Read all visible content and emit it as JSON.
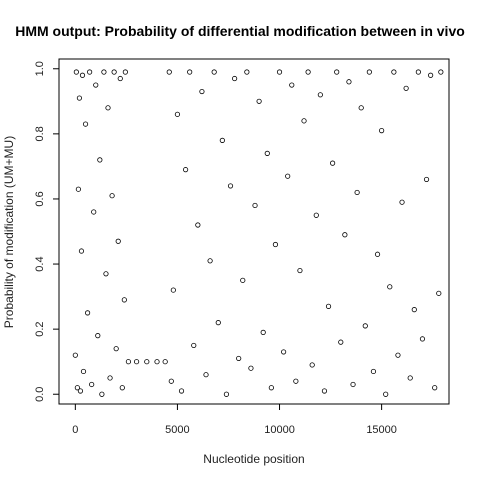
{
  "chart_data": {
    "type": "scatter",
    "title": "HMM output: Probability of differential modification between in vivo",
    "xlabel": "Nucleotide position",
    "ylabel": "Probability of modification (UM+MU)",
    "xlim": [
      -800,
      18300
    ],
    "ylim": [
      -0.03,
      1.03
    ],
    "x_ticks": [
      0,
      5000,
      10000,
      15000
    ],
    "x_tick_labels": [
      "0",
      "5000",
      "10000",
      "15000"
    ],
    "y_ticks": [
      0.0,
      0.2,
      0.4,
      0.6,
      0.8,
      1.0
    ],
    "y_tick_labels": [
      "0.0",
      "0.2",
      "0.4",
      "0.6",
      "0.8",
      "1.0"
    ],
    "grid": false,
    "marker": "open-circle",
    "sampled_points": [
      [
        0,
        0.12
      ],
      [
        50,
        0.99
      ],
      [
        100,
        0.02
      ],
      [
        150,
        0.63
      ],
      [
        200,
        0.91
      ],
      [
        250,
        0.01
      ],
      [
        300,
        0.44
      ],
      [
        350,
        0.98
      ],
      [
        400,
        0.07
      ],
      [
        500,
        0.83
      ],
      [
        600,
        0.25
      ],
      [
        700,
        0.99
      ],
      [
        800,
        0.03
      ],
      [
        900,
        0.56
      ],
      [
        1000,
        0.95
      ],
      [
        1100,
        0.18
      ],
      [
        1200,
        0.72
      ],
      [
        1300,
        0.0
      ],
      [
        1400,
        0.99
      ],
      [
        1500,
        0.37
      ],
      [
        1600,
        0.88
      ],
      [
        1700,
        0.05
      ],
      [
        1800,
        0.61
      ],
      [
        1900,
        0.99
      ],
      [
        2000,
        0.14
      ],
      [
        2100,
        0.47
      ],
      [
        2200,
        0.97
      ],
      [
        2300,
        0.02
      ],
      [
        2400,
        0.29
      ],
      [
        2450,
        0.99
      ],
      [
        2600,
        0.1
      ],
      [
        3000,
        0.1
      ],
      [
        3500,
        0.1
      ],
      [
        4000,
        0.1
      ],
      [
        4400,
        0.1
      ],
      [
        4600,
        0.99
      ],
      [
        4700,
        0.04
      ],
      [
        4800,
        0.32
      ],
      [
        5000,
        0.86
      ],
      [
        5200,
        0.01
      ],
      [
        5400,
        0.69
      ],
      [
        5600,
        0.99
      ],
      [
        5800,
        0.15
      ],
      [
        6000,
        0.52
      ],
      [
        6200,
        0.93
      ],
      [
        6400,
        0.06
      ],
      [
        6600,
        0.41
      ],
      [
        6800,
        0.99
      ],
      [
        7000,
        0.22
      ],
      [
        7200,
        0.78
      ],
      [
        7400,
        0.0
      ],
      [
        7600,
        0.64
      ],
      [
        7800,
        0.97
      ],
      [
        8000,
        0.11
      ],
      [
        8200,
        0.35
      ],
      [
        8400,
        0.99
      ],
      [
        8600,
        0.08
      ],
      [
        8800,
        0.58
      ],
      [
        9000,
        0.9
      ],
      [
        9200,
        0.19
      ],
      [
        9400,
        0.74
      ],
      [
        9600,
        0.02
      ],
      [
        9800,
        0.46
      ],
      [
        10000,
        0.99
      ],
      [
        10200,
        0.13
      ],
      [
        10400,
        0.67
      ],
      [
        10600,
        0.95
      ],
      [
        10800,
        0.04
      ],
      [
        11000,
        0.38
      ],
      [
        11200,
        0.84
      ],
      [
        11400,
        0.99
      ],
      [
        11600,
        0.09
      ],
      [
        11800,
        0.55
      ],
      [
        12000,
        0.92
      ],
      [
        12200,
        0.01
      ],
      [
        12400,
        0.27
      ],
      [
        12600,
        0.71
      ],
      [
        12800,
        0.99
      ],
      [
        13000,
        0.16
      ],
      [
        13200,
        0.49
      ],
      [
        13400,
        0.96
      ],
      [
        13600,
        0.03
      ],
      [
        13800,
        0.62
      ],
      [
        14000,
        0.88
      ],
      [
        14200,
        0.21
      ],
      [
        14400,
        0.99
      ],
      [
        14600,
        0.07
      ],
      [
        14800,
        0.43
      ],
      [
        15000,
        0.81
      ],
      [
        15200,
        0.0
      ],
      [
        15400,
        0.33
      ],
      [
        15600,
        0.99
      ],
      [
        15800,
        0.12
      ],
      [
        16000,
        0.59
      ],
      [
        16200,
        0.94
      ],
      [
        16400,
        0.05
      ],
      [
        16600,
        0.26
      ],
      [
        16800,
        0.99
      ],
      [
        17000,
        0.17
      ],
      [
        17200,
        0.66
      ],
      [
        17400,
        0.98
      ],
      [
        17600,
        0.02
      ],
      [
        17800,
        0.31
      ],
      [
        17900,
        0.99
      ]
    ]
  }
}
